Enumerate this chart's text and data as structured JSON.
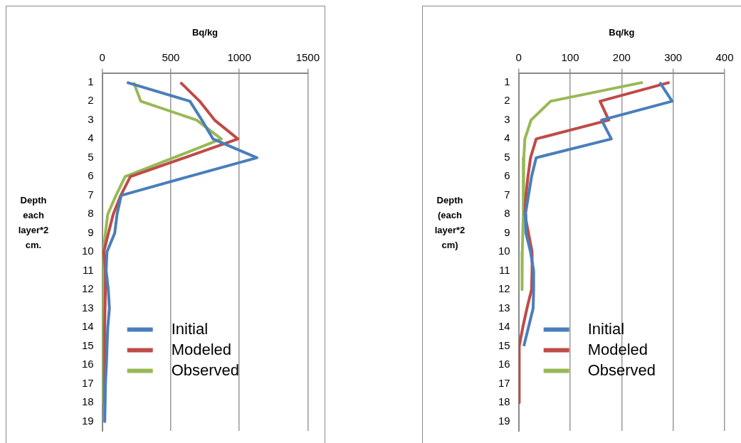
{
  "chart_data": [
    {
      "type": "line",
      "orientation": "horizontal",
      "xlabel": "Bq/kg",
      "ylabel": "Depth each layer*2 cm.",
      "categories": [
        "1",
        "2",
        "3",
        "4",
        "5",
        "6",
        "7",
        "8",
        "9",
        "10",
        "11",
        "12",
        "13",
        "14",
        "15",
        "16",
        "17",
        "18",
        "19"
      ],
      "xlim": [
        0,
        1500
      ],
      "xticks": [
        0,
        500,
        1000,
        1500
      ],
      "grid": "x",
      "legend": "bottom",
      "marker": "none",
      "series": [
        {
          "name": "Initial",
          "color": "#4a7ebb",
          "values": [
            180,
            640,
            727,
            808,
            1129,
            630,
            138,
            108,
            91,
            34,
            28,
            44,
            52,
            40,
            35,
            30,
            23,
            21,
            18
          ]
        },
        {
          "name": "Modeled",
          "color": "#be4b48",
          "values": [
            571,
            711,
            820,
            990,
            600,
            205,
            135,
            80,
            45,
            11,
            23,
            23,
            20,
            17,
            17,
            17,
            17,
            17,
            null
          ]
        },
        {
          "name": "Observed",
          "color": "#98b954",
          "values": [
            229,
            281,
            689,
            869,
            520,
            167,
            100,
            40,
            23,
            9,
            8,
            8,
            8,
            8,
            8,
            8,
            8,
            8,
            null
          ]
        }
      ]
    },
    {
      "type": "line",
      "orientation": "horizontal",
      "xlabel": "Bq/kg",
      "ylabel": "Depth (each layer*2 cm)",
      "categories": [
        "1",
        "2",
        "3",
        "4",
        "5",
        "6",
        "7",
        "8",
        "9",
        "10",
        "11",
        "12",
        "13",
        "14",
        "15",
        "16",
        "17",
        "18",
        "19"
      ],
      "xlim": [
        0,
        400
      ],
      "xticks": [
        0,
        100,
        200,
        300,
        400
      ],
      "grid": "x",
      "legend": "bottom",
      "marker": "none",
      "series": [
        {
          "name": "Initial",
          "color": "#4a7ebb",
          "values": [
            274,
            298,
            161,
            180,
            34,
            25,
            19,
            13,
            14,
            23,
            29,
            29,
            28,
            19,
            10,
            null,
            null,
            null,
            null
          ]
        },
        {
          "name": "Modeled",
          "color": "#be4b48",
          "values": [
            293,
            158,
            175,
            34,
            23,
            18,
            14,
            12,
            19,
            26,
            26,
            25,
            16,
            8,
            1,
            1,
            1,
            1,
            null
          ]
        },
        {
          "name": "Observed",
          "color": "#98b954",
          "values": [
            241,
            62,
            24,
            12,
            10,
            9,
            9,
            9,
            8,
            7,
            7,
            6,
            null,
            null,
            null,
            null,
            null,
            null,
            null
          ]
        }
      ]
    }
  ]
}
